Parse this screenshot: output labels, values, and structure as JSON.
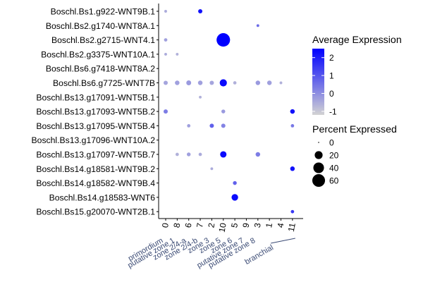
{
  "chart_data": {
    "type": "dotplot",
    "genes": [
      "Boschl.Bs1.g922-WNT9B.1",
      "Boschl.Bs2.g1740-WNT8A.1",
      "Boschl.Bs2.g2715-WNT4.1",
      "Boschl.Bs2.g3375-WNT10A.1",
      "Boschl.Bs6.g7418-WNT8A.2",
      "Boschl.Bs6.g7725-WNT7B",
      "Boschl.Bs13.g17091-WNT5B.1",
      "Boschl.Bs13.g17093-WNT5B.2",
      "Boschl.Bs13.g17095-WNT5B.4",
      "Boschl.Bs13.g17096-WNT10A.2",
      "Boschl.Bs13.g17097-WNT5B.7",
      "Boschl.Bs14.g18581-WNT9B.2",
      "Boschl.Bs14.g18582-WNT9B.4",
      "Boschl.Bs14.g18583-WNT6",
      "Boschl.Bs15.g20070-WNT2B.1"
    ],
    "clusters": [
      "0",
      "8",
      "6",
      "7",
      "2",
      "10",
      "5",
      "9",
      "3",
      "1",
      "4",
      "11"
    ],
    "groups": [
      {
        "label": "primordium",
        "clusters": [
          "0"
        ]
      },
      {
        "label": "putative zone 1",
        "clusters": [
          "8"
        ]
      },
      {
        "label": "zone 2/4-a",
        "clusters": [
          "6"
        ]
      },
      {
        "label": "zone 2/4-b",
        "clusters": [
          "7"
        ]
      },
      {
        "label": "zone 3",
        "clusters": [
          "2"
        ]
      },
      {
        "label": "zone 5",
        "clusters": [
          "10"
        ]
      },
      {
        "label": "zone 6",
        "clusters": [
          "5"
        ]
      },
      {
        "label": "putative zone 7",
        "clusters": [
          "9"
        ]
      },
      {
        "label": "putative zone 8",
        "clusters": [
          "3"
        ]
      },
      {
        "label": "branchial",
        "clusters": [
          "1",
          "4",
          "11"
        ]
      }
    ],
    "points": [
      {
        "gene": 0,
        "cluster": 0,
        "pct": 1,
        "avg": -0.5
      },
      {
        "gene": 0,
        "cluster": 3,
        "pct": 4,
        "avg": 2.2
      },
      {
        "gene": 1,
        "cluster": 8,
        "pct": 1,
        "avg": 0.6
      },
      {
        "gene": 2,
        "cluster": 0,
        "pct": 2,
        "avg": -0.3
      },
      {
        "gene": 2,
        "cluster": 5,
        "pct": 68,
        "avg": 2.5
      },
      {
        "gene": 3,
        "cluster": 0,
        "pct": 1,
        "avg": -0.5
      },
      {
        "gene": 3,
        "cluster": 1,
        "pct": 1,
        "avg": -0.6
      },
      {
        "gene": 5,
        "cluster": 0,
        "pct": 4,
        "avg": -0.4
      },
      {
        "gene": 5,
        "cluster": 1,
        "pct": 5,
        "avg": -0.3
      },
      {
        "gene": 5,
        "cluster": 2,
        "pct": 6,
        "avg": -0.2
      },
      {
        "gene": 5,
        "cluster": 3,
        "pct": 5,
        "avg": -0.3
      },
      {
        "gene": 5,
        "cluster": 4,
        "pct": 4,
        "avg": -0.4
      },
      {
        "gene": 5,
        "cluster": 5,
        "pct": 16,
        "avg": 2.3
      },
      {
        "gene": 5,
        "cluster": 6,
        "pct": 2,
        "avg": -0.6
      },
      {
        "gene": 5,
        "cluster": 8,
        "pct": 5,
        "avg": -0.2
      },
      {
        "gene": 5,
        "cluster": 9,
        "pct": 5,
        "avg": -0.3
      },
      {
        "gene": 5,
        "cluster": 10,
        "pct": 1,
        "avg": -0.6
      },
      {
        "gene": 6,
        "cluster": 3,
        "pct": 1,
        "avg": -0.6
      },
      {
        "gene": 7,
        "cluster": 0,
        "pct": 4,
        "avg": 0.3
      },
      {
        "gene": 7,
        "cluster": 5,
        "pct": 3,
        "avg": -0.2
      },
      {
        "gene": 7,
        "cluster": 11,
        "pct": 5,
        "avg": 2.2
      },
      {
        "gene": 8,
        "cluster": 2,
        "pct": 2,
        "avg": -0.3
      },
      {
        "gene": 8,
        "cluster": 4,
        "pct": 4,
        "avg": 0.8
      },
      {
        "gene": 8,
        "cluster": 5,
        "pct": 4,
        "avg": 0.2
      },
      {
        "gene": 8,
        "cluster": 11,
        "pct": 2,
        "avg": 0.4
      },
      {
        "gene": 10,
        "cluster": 1,
        "pct": 2,
        "avg": -0.6
      },
      {
        "gene": 10,
        "cluster": 2,
        "pct": 3,
        "avg": -0.3
      },
      {
        "gene": 10,
        "cluster": 3,
        "pct": 2,
        "avg": -0.5
      },
      {
        "gene": 10,
        "cluster": 5,
        "pct": 12,
        "avg": 2.3
      },
      {
        "gene": 10,
        "cluster": 8,
        "pct": 5,
        "avg": 0.3
      },
      {
        "gene": 11,
        "cluster": 4,
        "pct": 1,
        "avg": -0.5
      },
      {
        "gene": 11,
        "cluster": 11,
        "pct": 5,
        "avg": 2.2
      },
      {
        "gene": 12,
        "cluster": 6,
        "pct": 3,
        "avg": 0.8
      },
      {
        "gene": 13,
        "cluster": 6,
        "pct": 13,
        "avg": 2.3
      },
      {
        "gene": 14,
        "cluster": 11,
        "pct": 2,
        "avg": 1.5
      }
    ],
    "legend_color": {
      "title": "Average Expression",
      "ticks": [
        2,
        1,
        0,
        -1
      ],
      "min": -1.2,
      "max": 2.5,
      "low_color": "#d3d3d3",
      "high_color": "#0000ff"
    },
    "legend_size": {
      "title": "Percent Expressed",
      "ticks": [
        0,
        20,
        40,
        60
      ]
    },
    "legend_position": "right"
  }
}
